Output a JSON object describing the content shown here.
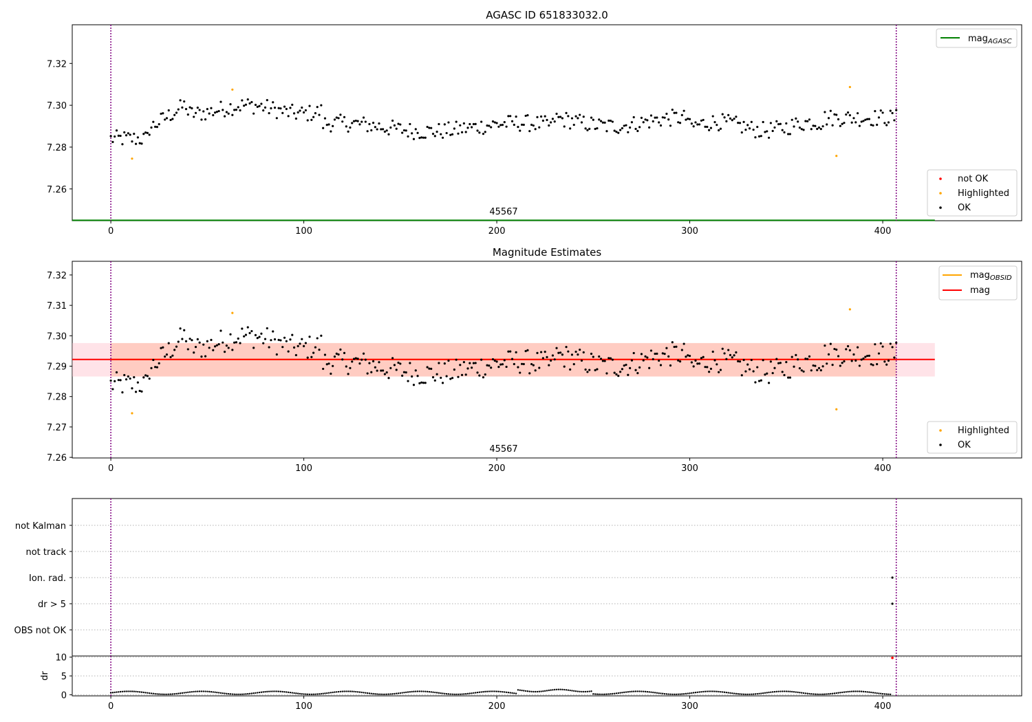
{
  "colors": {
    "ok": "#000000",
    "not_ok": "#ff0000",
    "highlighted": "#ffa500",
    "mag_line": "#ff0000",
    "mag_obsid": "#ffa500",
    "mag_agasc": "#008000",
    "obs_marker": "#800080",
    "band_pink": "#ffc0cb",
    "band_orange": "#ffa07a",
    "grid": "#b0b0b0"
  },
  "chart_data": [
    {
      "type": "scatter",
      "title": "AGASC ID 651833032.0",
      "xlim": [
        -20,
        472
      ],
      "ylim": [
        7.2448,
        7.3385
      ],
      "x_ticks": [
        0,
        100,
        200,
        300,
        400
      ],
      "y_ticks": [
        7.26,
        7.28,
        7.3,
        7.32
      ],
      "y_tick_labels": [
        "7.26",
        "7.28",
        "7.30",
        "7.32"
      ],
      "obsid_text": "45567",
      "obs_boundaries": [
        0,
        407
      ],
      "mag_agasc": 7.245,
      "legend_lines": [
        {
          "label": "mag",
          "subscript": "AGASC",
          "color_key": "mag_agasc"
        }
      ],
      "legend_points": [
        {
          "label": "not OK",
          "color_key": "not_ok"
        },
        {
          "label": "Highlighted",
          "color_key": "highlighted"
        },
        {
          "label": "OK",
          "color_key": "ok"
        }
      ],
      "highlighted": [
        [
          11,
          7.2745
        ],
        [
          63,
          7.3075
        ],
        [
          376,
          7.2758
        ],
        [
          383,
          7.3087
        ]
      ]
    },
    {
      "type": "scatter",
      "title": "Magnitude Estimates",
      "xlim": [
        -20,
        472
      ],
      "ylim": [
        7.2598,
        7.3245
      ],
      "x_ticks": [
        0,
        100,
        200,
        300,
        400
      ],
      "y_ticks": [
        7.26,
        7.27,
        7.28,
        7.29,
        7.3,
        7.31,
        7.32
      ],
      "y_tick_labels": [
        "7.26",
        "7.27",
        "7.28",
        "7.29",
        "7.30",
        "7.31",
        "7.32"
      ],
      "obsid_text": "45567",
      "obs_boundaries": [
        0,
        407
      ],
      "mag": 7.2922,
      "mag_obsid": 7.2922,
      "band_outer": [
        7.2866,
        7.2976
      ],
      "band_inner": [
        7.2866,
        7.2976
      ],
      "legend_lines": [
        {
          "label": "mag",
          "subscript": "OBSID",
          "color_key": "mag_obsid"
        },
        {
          "label": "mag",
          "subscript": "",
          "color_key": "mag_line"
        }
      ],
      "legend_points": [
        {
          "label": "Highlighted",
          "color_key": "highlighted"
        },
        {
          "label": "OK",
          "color_key": "ok"
        }
      ],
      "highlighted": [
        [
          11,
          7.2745
        ],
        [
          63,
          7.3075
        ],
        [
          376,
          7.2758
        ],
        [
          383,
          7.3087
        ]
      ]
    },
    {
      "type": "scatter",
      "title": "",
      "categories": [
        "not Kalman",
        "not track",
        "Ion. rad.",
        "dr > 5",
        "OBS not OK"
      ],
      "xlim": [
        -20,
        472
      ],
      "obs_boundaries": [
        0,
        407
      ],
      "flag_points": [
        [
          405,
          "Ion. rad."
        ],
        [
          405,
          "dr > 5"
        ]
      ]
    },
    {
      "type": "scatter",
      "ylabel": "dr",
      "xlim": [
        -20,
        472
      ],
      "ylim": [
        -0.3,
        10.3
      ],
      "x_ticks": [
        0,
        100,
        200,
        300,
        400
      ],
      "y_ticks": [
        0,
        5,
        10
      ],
      "obs_boundaries": [
        0,
        407
      ],
      "not_ok_points": [
        [
          405,
          9.8
        ]
      ]
    }
  ]
}
